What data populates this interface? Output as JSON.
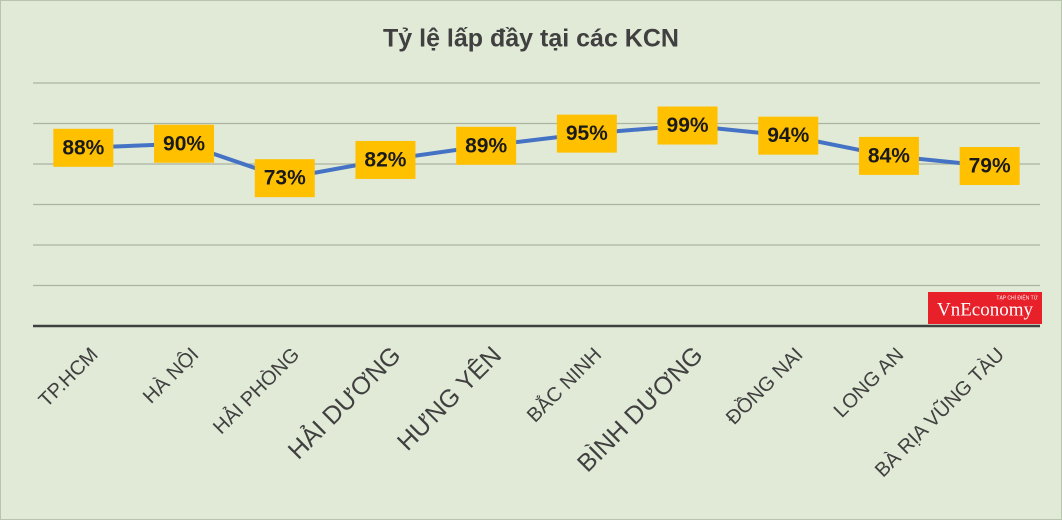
{
  "chart_data": {
    "type": "line",
    "title": "Tỷ lệ lấp đầy tại các KCN",
    "categories": [
      "TP.HCM",
      "HÀ NỘI",
      "HẢI PHÒNG",
      "HẢI DƯƠNG",
      "HƯNG YÊN",
      "BẮC NINH",
      "BÌNH DƯƠNG",
      "ĐỒNG NAI",
      "LONG AN",
      "BÀ RỊA VŨNG TÀU"
    ],
    "series": [
      {
        "name": "Tỷ lệ lấp đầy",
        "color": "#4472c4",
        "values": [
          88,
          90,
          73,
          82,
          89,
          95,
          99,
          94,
          84,
          79
        ],
        "value_labels": [
          "88%",
          "90%",
          "73%",
          "82%",
          "89%",
          "95%",
          "99%",
          "94%",
          "84%",
          "79%"
        ]
      }
    ],
    "ylim": [
      0,
      120
    ],
    "yticks": [
      0,
      20,
      40,
      60,
      80,
      100,
      120
    ],
    "grid": true,
    "label_box_color": "#ffc000",
    "watermark": "VnEconomy",
    "watermark_caption": "TẠP CHÍ ĐIỆN TỬ"
  }
}
